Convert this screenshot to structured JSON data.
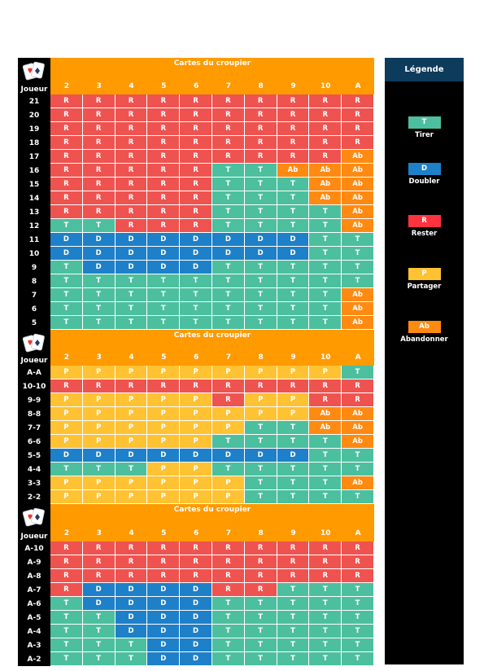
{
  "header_label": "Cartes du croupier",
  "player_label": "Joueur",
  "dealer_cards": [
    "2",
    "3",
    "4",
    "5",
    "6",
    "7",
    "8",
    "9",
    "10",
    "A"
  ],
  "legend": {
    "title": "Légende",
    "items": [
      {
        "code": "T",
        "label": "Tirer"
      },
      {
        "code": "D",
        "label": "Doubler"
      },
      {
        "code": "R",
        "label": "Rester"
      },
      {
        "code": "P",
        "label": "Partager"
      },
      {
        "code": "Ab",
        "label": "Abandonner"
      }
    ]
  },
  "colors": {
    "R": "#ef5350",
    "T": "#4cbf9e",
    "D": "#1e80c8",
    "P": "#ffc233",
    "Ab": "#ff8a12",
    "header": "#ff9a00"
  },
  "sections": [
    {
      "name": "hard",
      "rows": [
        {
          "label": "21",
          "cells": [
            "R",
            "R",
            "R",
            "R",
            "R",
            "R",
            "R",
            "R",
            "R",
            "R"
          ]
        },
        {
          "label": "20",
          "cells": [
            "R",
            "R",
            "R",
            "R",
            "R",
            "R",
            "R",
            "R",
            "R",
            "R"
          ]
        },
        {
          "label": "19",
          "cells": [
            "R",
            "R",
            "R",
            "R",
            "R",
            "R",
            "R",
            "R",
            "R",
            "R"
          ]
        },
        {
          "label": "18",
          "cells": [
            "R",
            "R",
            "R",
            "R",
            "R",
            "R",
            "R",
            "R",
            "R",
            "R"
          ]
        },
        {
          "label": "17",
          "cells": [
            "R",
            "R",
            "R",
            "R",
            "R",
            "R",
            "R",
            "R",
            "R",
            "Ab"
          ]
        },
        {
          "label": "16",
          "cells": [
            "R",
            "R",
            "R",
            "R",
            "R",
            "T",
            "T",
            "Ab",
            "Ab",
            "Ab"
          ]
        },
        {
          "label": "15",
          "cells": [
            "R",
            "R",
            "R",
            "R",
            "R",
            "T",
            "T",
            "T",
            "Ab",
            "Ab"
          ]
        },
        {
          "label": "14",
          "cells": [
            "R",
            "R",
            "R",
            "R",
            "R",
            "T",
            "T",
            "T",
            "Ab",
            "Ab"
          ]
        },
        {
          "label": "13",
          "cells": [
            "R",
            "R",
            "R",
            "R",
            "R",
            "T",
            "T",
            "T",
            "T",
            "Ab"
          ]
        },
        {
          "label": "12",
          "cells": [
            "T",
            "T",
            "R",
            "R",
            "R",
            "T",
            "T",
            "T",
            "T",
            "Ab"
          ]
        },
        {
          "label": "11",
          "cells": [
            "D",
            "D",
            "D",
            "D",
            "D",
            "D",
            "D",
            "D",
            "T",
            "T"
          ]
        },
        {
          "label": "10",
          "cells": [
            "D",
            "D",
            "D",
            "D",
            "D",
            "D",
            "D",
            "D",
            "T",
            "T"
          ]
        },
        {
          "label": "9",
          "cells": [
            "T",
            "D",
            "D",
            "D",
            "D",
            "T",
            "T",
            "T",
            "T",
            "T"
          ]
        },
        {
          "label": "8",
          "cells": [
            "T",
            "T",
            "T",
            "T",
            "T",
            "T",
            "T",
            "T",
            "T",
            "T"
          ]
        },
        {
          "label": "7",
          "cells": [
            "T",
            "T",
            "T",
            "T",
            "T",
            "T",
            "T",
            "T",
            "T",
            "Ab"
          ]
        },
        {
          "label": "6",
          "cells": [
            "T",
            "T",
            "T",
            "T",
            "T",
            "T",
            "T",
            "T",
            "T",
            "Ab"
          ]
        },
        {
          "label": "5",
          "cells": [
            "T",
            "T",
            "T",
            "T",
            "T",
            "T",
            "T",
            "T",
            "T",
            "Ab"
          ]
        }
      ]
    },
    {
      "name": "pairs",
      "rows": [
        {
          "label": "A-A",
          "cells": [
            "P",
            "P",
            "P",
            "P",
            "P",
            "P",
            "P",
            "P",
            "P",
            "T"
          ]
        },
        {
          "label": "10-10",
          "cells": [
            "R",
            "R",
            "R",
            "R",
            "R",
            "R",
            "R",
            "R",
            "R",
            "R"
          ]
        },
        {
          "label": "9-9",
          "cells": [
            "P",
            "P",
            "P",
            "P",
            "P",
            "R",
            "P",
            "P",
            "R",
            "R"
          ]
        },
        {
          "label": "8-8",
          "cells": [
            "P",
            "P",
            "P",
            "P",
            "P",
            "P",
            "P",
            "P",
            "Ab",
            "Ab"
          ]
        },
        {
          "label": "7-7",
          "cells": [
            "P",
            "P",
            "P",
            "P",
            "P",
            "P",
            "T",
            "T",
            "Ab",
            "Ab"
          ]
        },
        {
          "label": "6-6",
          "cells": [
            "P",
            "P",
            "P",
            "P",
            "P",
            "T",
            "T",
            "T",
            "T",
            "Ab"
          ]
        },
        {
          "label": "5-5",
          "cells": [
            "D",
            "D",
            "D",
            "D",
            "D",
            "D",
            "D",
            "D",
            "T",
            "T"
          ]
        },
        {
          "label": "4-4",
          "cells": [
            "T",
            "T",
            "T",
            "P",
            "P",
            "T",
            "T",
            "T",
            "T",
            "T"
          ]
        },
        {
          "label": "3-3",
          "cells": [
            "P",
            "P",
            "P",
            "P",
            "P",
            "P",
            "T",
            "T",
            "T",
            "Ab"
          ]
        },
        {
          "label": "2-2",
          "cells": [
            "P",
            "P",
            "P",
            "P",
            "P",
            "P",
            "T",
            "T",
            "T",
            "T"
          ]
        }
      ]
    },
    {
      "name": "soft",
      "rows": [
        {
          "label": "A-10",
          "cells": [
            "R",
            "R",
            "R",
            "R",
            "R",
            "R",
            "R",
            "R",
            "R",
            "R"
          ]
        },
        {
          "label": "A-9",
          "cells": [
            "R",
            "R",
            "R",
            "R",
            "R",
            "R",
            "R",
            "R",
            "R",
            "R"
          ]
        },
        {
          "label": "A-8",
          "cells": [
            "R",
            "R",
            "R",
            "R",
            "R",
            "R",
            "R",
            "R",
            "R",
            "R"
          ]
        },
        {
          "label": "A-7",
          "cells": [
            "R",
            "D",
            "D",
            "D",
            "D",
            "R",
            "R",
            "T",
            "T",
            "T"
          ]
        },
        {
          "label": "A-6",
          "cells": [
            "T",
            "D",
            "D",
            "D",
            "D",
            "T",
            "T",
            "T",
            "T",
            "T"
          ]
        },
        {
          "label": "A-5",
          "cells": [
            "T",
            "T",
            "D",
            "D",
            "D",
            "T",
            "T",
            "T",
            "T",
            "T"
          ]
        },
        {
          "label": "A-4",
          "cells": [
            "T",
            "T",
            "D",
            "D",
            "D",
            "T",
            "T",
            "T",
            "T",
            "T"
          ]
        },
        {
          "label": "A-3",
          "cells": [
            "T",
            "T",
            "T",
            "D",
            "D",
            "T",
            "T",
            "T",
            "T",
            "T"
          ]
        },
        {
          "label": "A-2",
          "cells": [
            "T",
            "T",
            "T",
            "D",
            "D",
            "T",
            "T",
            "T",
            "T",
            "T"
          ]
        }
      ]
    }
  ]
}
